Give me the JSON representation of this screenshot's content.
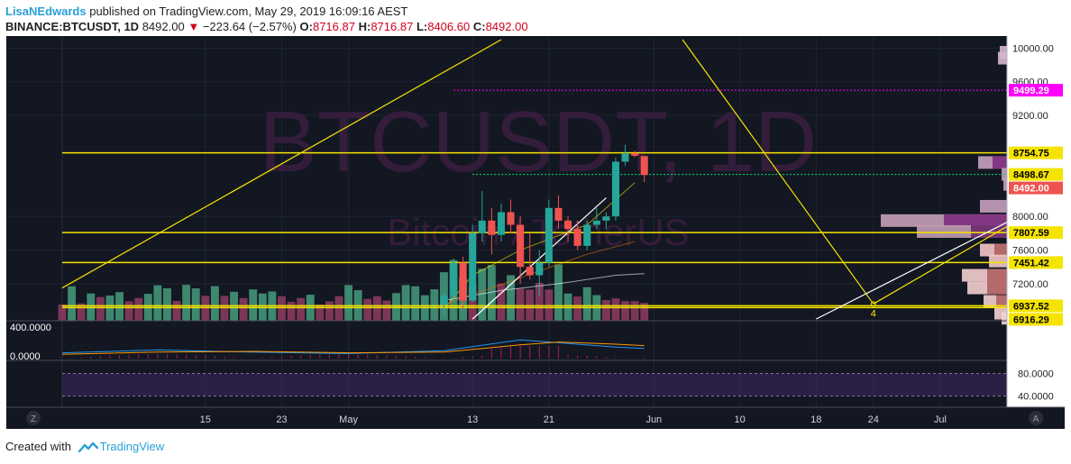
{
  "header": {
    "author": "LisaNEdwards",
    "published_text": "published on TradingView.com, May 29, 2019 16:09:16 AEST",
    "symbol": "BINANCE:BTCUSDT, 1D",
    "last": "8492.00",
    "change": "−223.64 (−2.57%)",
    "open_label": "O:",
    "open": "8716.87",
    "high_label": "H:",
    "high": "8716.87",
    "low_label": "L:",
    "low": "8406.60",
    "close_label": "C:",
    "close": "8492.00"
  },
  "watermark": {
    "main": "BTCUSDT, 1D",
    "sub": "Bitcoin / TetherUS"
  },
  "footer": {
    "prefix": "Created with",
    "brand": "TradingView"
  },
  "colors": {
    "background": "#131722",
    "up": "#26a69a",
    "down": "#ef5350",
    "level_line": "#f5e400",
    "magenta": "#ff00ff",
    "green_dotted": "#00e676",
    "volume_up": "#4caf8a",
    "volume_down": "#a0426a"
  },
  "chart_data": {
    "type": "candlestick",
    "ylim": [
      6760,
      10100
    ],
    "x_axis": {
      "ticks": [
        {
          "label": "15",
          "day": 15
        },
        {
          "label": "23",
          "day": 23
        },
        {
          "label": "May",
          "day": 30
        },
        {
          "label": "13",
          "day": 43
        },
        {
          "label": "21",
          "day": 51
        },
        {
          "label": "Jun",
          "day": 62
        },
        {
          "label": "10",
          "day": 71
        },
        {
          "label": "18",
          "day": 79
        },
        {
          "label": "24",
          "day": 85
        },
        {
          "label": "Jul",
          "day": 92
        }
      ]
    },
    "y_ticks": [
      10000,
      9600,
      9200,
      8000,
      7600,
      7200
    ],
    "y_tick_labels": [
      "10000.00",
      "9600.00",
      "9200.00",
      "8000.00",
      "7600.00",
      "7200.00"
    ],
    "price_labels": [
      {
        "label": "9499.29",
        "value": 9499.29,
        "style": "magenta"
      },
      {
        "label": "8754.75",
        "value": 8754.75,
        "style": "yellow"
      },
      {
        "label": "8498.67",
        "value": 8498.67,
        "style": "yellow"
      },
      {
        "label": "8492.00",
        "value": 8492.0,
        "style": "red"
      },
      {
        "label": "7807.59",
        "value": 7807.59,
        "style": "yellow"
      },
      {
        "label": "7451.42",
        "value": 7451.42,
        "style": "yellow"
      },
      {
        "label": "6937.52",
        "value": 6937.52,
        "style": "yellow"
      },
      {
        "label": "6916.29",
        "value": 6916.29,
        "style": "yellow"
      }
    ],
    "horizontal_levels": [
      8754.75,
      7807.59,
      7451.42,
      6937.52,
      6916.29
    ],
    "resistance_dotted": 9499.29,
    "last_price_dotted": 8498.67,
    "candles": [
      {
        "day": 40,
        "o": 6950,
        "h": 7100,
        "l": 6820,
        "c": 7060
      },
      {
        "day": 41,
        "o": 7060,
        "h": 7500,
        "l": 7000,
        "c": 7450
      },
      {
        "day": 42,
        "o": 7450,
        "h": 7520,
        "l": 6900,
        "c": 7000
      },
      {
        "day": 43,
        "o": 7000,
        "h": 7900,
        "l": 6980,
        "c": 7800
      },
      {
        "day": 44,
        "o": 7800,
        "h": 8300,
        "l": 7700,
        "c": 7950
      },
      {
        "day": 45,
        "o": 7950,
        "h": 8100,
        "l": 7550,
        "c": 7780
      },
      {
        "day": 46,
        "o": 7780,
        "h": 8150,
        "l": 7700,
        "c": 8050
      },
      {
        "day": 47,
        "o": 8050,
        "h": 8200,
        "l": 7800,
        "c": 7900
      },
      {
        "day": 48,
        "o": 7900,
        "h": 8000,
        "l": 7200,
        "c": 7400
      },
      {
        "day": 49,
        "o": 7400,
        "h": 7800,
        "l": 7250,
        "c": 7300
      },
      {
        "day": 50,
        "o": 7300,
        "h": 7600,
        "l": 7050,
        "c": 7450
      },
      {
        "day": 51,
        "o": 7450,
        "h": 8200,
        "l": 7400,
        "c": 8100
      },
      {
        "day": 52,
        "o": 8100,
        "h": 8250,
        "l": 7850,
        "c": 7950
      },
      {
        "day": 53,
        "o": 7950,
        "h": 8000,
        "l": 7700,
        "c": 7850
      },
      {
        "day": 54,
        "o": 7850,
        "h": 7950,
        "l": 7600,
        "c": 7650
      },
      {
        "day": 55,
        "o": 7650,
        "h": 7950,
        "l": 7600,
        "c": 7900
      },
      {
        "day": 56,
        "o": 7900,
        "h": 8100,
        "l": 7850,
        "c": 7950
      },
      {
        "day": 57,
        "o": 7950,
        "h": 8050,
        "l": 7850,
        "c": 8000
      },
      {
        "day": 58,
        "o": 8000,
        "h": 8700,
        "l": 7950,
        "c": 8650
      },
      {
        "day": 59,
        "o": 8650,
        "h": 8850,
        "l": 8600,
        "c": 8750
      },
      {
        "day": 60,
        "o": 8750,
        "h": 8780,
        "l": 8700,
        "c": 8720
      },
      {
        "day": 61,
        "o": 8716.87,
        "h": 8716.87,
        "l": 8406.6,
        "c": 8492.0
      }
    ],
    "volume_ticks": [
      {
        "label": "400.0000",
        "value": 400
      },
      {
        "label": "0.0000",
        "value": 0
      }
    ],
    "rsi_ticks": [
      {
        "label": "80.0000",
        "value": 80
      },
      {
        "label": "40.0000",
        "value": 40
      }
    ],
    "annotations": [
      {
        "label": "4",
        "day": 85,
        "value": 6960
      }
    ],
    "side_buttons": [
      "Z",
      "A"
    ]
  }
}
